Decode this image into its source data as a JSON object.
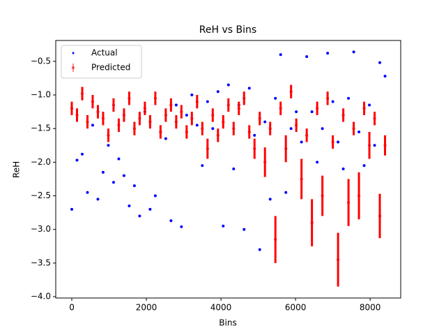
{
  "chart_data": {
    "type": "scatter",
    "title": "ReH vs Bins",
    "xlabel": "Bins",
    "ylabel": "ReH",
    "x": [
      0,
      140,
      280,
      420,
      560,
      700,
      840,
      980,
      1120,
      1260,
      1400,
      1540,
      1680,
      1820,
      1960,
      2100,
      2240,
      2380,
      2520,
      2660,
      2800,
      2940,
      3080,
      3220,
      3360,
      3500,
      3640,
      3780,
      3920,
      4060,
      4200,
      4340,
      4480,
      4620,
      4760,
      4900,
      5040,
      5180,
      5320,
      5460,
      5600,
      5740,
      5880,
      6020,
      6160,
      6300,
      6440,
      6580,
      6720,
      6860,
      7000,
      7140,
      7280,
      7420,
      7560,
      7700,
      7840,
      7980,
      8120,
      8260,
      8400
    ],
    "series": [
      {
        "name": "Actual",
        "color": "#0000ff",
        "values": [
          -2.7,
          -1.97,
          -1.88,
          -2.45,
          -1.45,
          -2.55,
          -2.15,
          -1.75,
          -2.3,
          -1.95,
          -2.2,
          -2.65,
          -2.35,
          -2.8,
          -1.25,
          -2.7,
          -2.5,
          -1.55,
          -1.65,
          -2.87,
          -1.15,
          -2.96,
          -1.3,
          -1.0,
          -1.45,
          -2.05,
          -1.1,
          -1.5,
          -0.95,
          -2.95,
          -0.85,
          -2.1,
          -1.15,
          -3.0,
          -0.9,
          -1.6,
          -3.3,
          -1.4,
          -2.55,
          -1.05,
          -0.4,
          -2.45,
          -1.5,
          -1.25,
          -1.7,
          -0.43,
          -1.25,
          -2.0,
          -1.5,
          -0.38,
          -1.1,
          -1.7,
          -2.1,
          -1.05,
          -0.36,
          -1.55,
          -2.05,
          -1.15,
          -1.75,
          -0.52,
          -0.72
        ]
      },
      {
        "name": "Predicted",
        "color": "#ff0000",
        "values": [
          -1.2,
          -1.3,
          -0.98,
          -1.4,
          -1.1,
          -1.25,
          -1.35,
          -1.6,
          -1.15,
          -1.45,
          -1.3,
          -1.05,
          -1.5,
          -1.35,
          -1.2,
          -1.4,
          -1.05,
          -1.55,
          -1.3,
          -1.15,
          -1.4,
          -1.25,
          -1.55,
          -1.35,
          -1.1,
          -1.5,
          -1.8,
          -1.3,
          -1.6,
          -1.4,
          -1.15,
          -1.5,
          -1.2,
          -1.05,
          -1.55,
          -1.8,
          -1.35,
          -2.0,
          -1.5,
          -3.15,
          -1.2,
          -1.8,
          -0.95,
          -1.45,
          -2.25,
          -1.6,
          -2.9,
          -1.2,
          -2.5,
          -1.05,
          -1.7,
          -3.45,
          -1.3,
          -2.6,
          -1.5,
          -2.5,
          -1.2,
          -1.75,
          -1.35,
          -2.8,
          -1.75
        ],
        "errors": [
          0.1,
          0.1,
          0.1,
          0.1,
          0.1,
          0.1,
          0.1,
          0.1,
          0.1,
          0.1,
          0.1,
          0.1,
          0.1,
          0.1,
          0.1,
          0.1,
          0.1,
          0.1,
          0.1,
          0.1,
          0.1,
          0.1,
          0.1,
          0.1,
          0.1,
          0.1,
          0.15,
          0.1,
          0.1,
          0.1,
          0.1,
          0.1,
          0.1,
          0.1,
          0.1,
          0.15,
          0.1,
          0.22,
          0.1,
          0.35,
          0.1,
          0.2,
          0.1,
          0.1,
          0.3,
          0.1,
          0.35,
          0.1,
          0.3,
          0.1,
          0.1,
          0.4,
          0.1,
          0.35,
          0.1,
          0.35,
          0.1,
          0.2,
          0.1,
          0.33,
          0.15
        ]
      }
    ],
    "xlim": [
      -430,
      8820
    ],
    "ylim": [
      -4.02,
      -0.19
    ],
    "xticks": [
      0,
      2000,
      4000,
      6000,
      8000
    ],
    "yticks": [
      {
        "value": -4.0,
        "label": "−4.0"
      },
      {
        "value": -3.5,
        "label": "−3.5"
      },
      {
        "value": -3.0,
        "label": "−3.0"
      },
      {
        "value": -2.5,
        "label": "−2.5"
      },
      {
        "value": -2.0,
        "label": "−2.0"
      },
      {
        "value": -1.5,
        "label": "−1.5"
      },
      {
        "value": -1.0,
        "label": "−1.0"
      },
      {
        "value": -0.5,
        "label": "−0.5"
      }
    ],
    "grid": false,
    "legend": "upper left"
  }
}
